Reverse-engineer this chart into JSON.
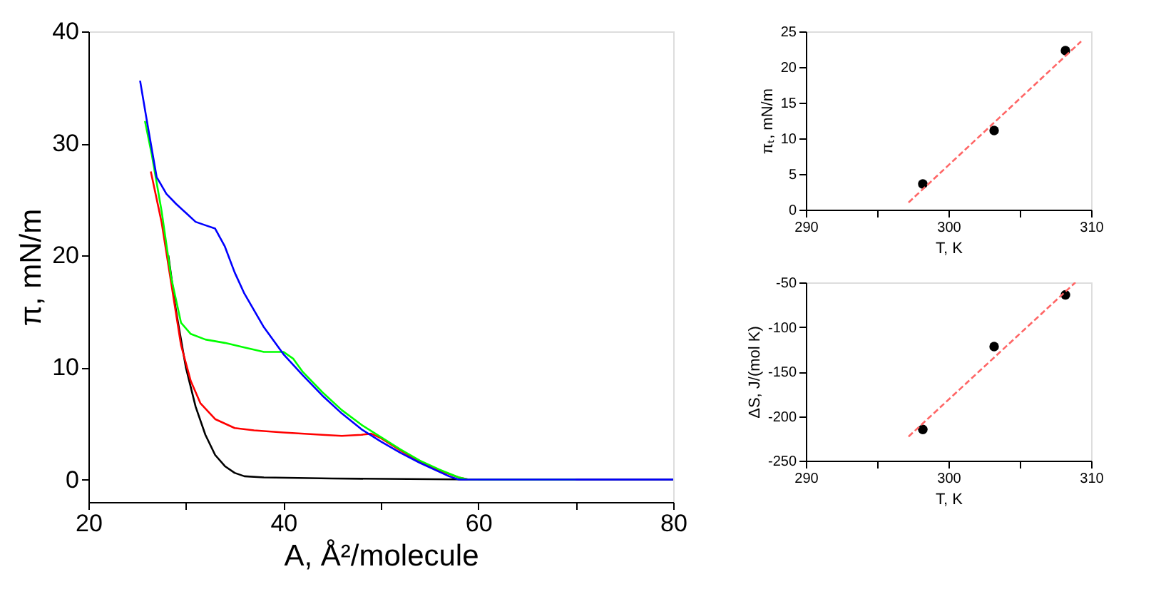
{
  "chart_data": [
    {
      "type": "line",
      "xlabel": "A, Å²/molecule",
      "ylabel": "π, mN/m",
      "xlim": [
        20,
        80
      ],
      "ylim": [
        -2,
        40
      ],
      "xticks": [
        20,
        {
          "value": 30,
          "label": null
        },
        40,
        {
          "value": 50,
          "label": null
        },
        60,
        {
          "value": 70,
          "label": null
        },
        80
      ],
      "yticks": [
        0,
        10,
        20,
        30,
        40
      ],
      "grid": false,
      "line_style": "solid",
      "marker": "none",
      "series": [
        {
          "color": "#000000",
          "x": [
            28.2,
            29,
            30,
            31,
            32,
            33,
            34,
            35,
            36,
            38,
            45,
            60,
            80
          ],
          "values": [
            20,
            15,
            10,
            6.5,
            4,
            2.2,
            1.2,
            0.6,
            0.3,
            0.2,
            0.1,
            0,
            0
          ]
        },
        {
          "color": "#ff0000",
          "x": [
            26.4,
            27.5,
            28.5,
            29.5,
            30.5,
            31.5,
            33,
            35,
            37,
            40,
            44,
            46,
            48,
            49,
            50,
            52,
            54,
            56,
            58,
            59,
            60
          ],
          "values": [
            27.5,
            23,
            17.5,
            12,
            8.8,
            6.8,
            5.4,
            4.6,
            4.4,
            4.2,
            4.0,
            3.9,
            4.0,
            4.1,
            3.7,
            2.6,
            1.6,
            0.8,
            0.2,
            0,
            0
          ]
        },
        {
          "color": "#00ff00",
          "x": [
            25.8,
            26.5,
            27.5,
            28.5,
            29.5,
            30.5,
            32,
            34,
            36,
            38,
            40,
            41,
            42,
            44,
            46,
            48,
            50,
            52,
            54,
            56,
            58,
            59,
            70
          ],
          "values": [
            32,
            29,
            24,
            18,
            14,
            13,
            12.5,
            12.2,
            11.8,
            11.4,
            11.4,
            10.8,
            9.6,
            7.8,
            6.2,
            4.9,
            3.8,
            2.7,
            1.7,
            0.9,
            0.2,
            0,
            0
          ]
        },
        {
          "color": "#0000ff",
          "x": [
            25.3,
            26,
            27,
            28,
            29,
            30,
            31,
            32,
            33,
            34,
            35,
            36,
            38,
            40,
            42,
            44,
            46,
            48,
            50,
            52,
            54,
            56,
            57,
            58,
            60,
            80
          ],
          "values": [
            35.6,
            32,
            27,
            25.5,
            24.6,
            23.8,
            23,
            22.7,
            22.4,
            20.8,
            18.5,
            16.6,
            13.6,
            11.2,
            9.3,
            7.5,
            5.9,
            4.5,
            3.4,
            2.4,
            1.5,
            0.7,
            0.3,
            0,
            0,
            0
          ]
        }
      ]
    },
    {
      "type": "scatter",
      "xlabel": "T, K",
      "ylabel": "πₜ, mN/m",
      "xlim": [
        290,
        310
      ],
      "ylim": [
        0,
        25
      ],
      "xticks": [
        290,
        {
          "value": 295,
          "label": null
        },
        300,
        {
          "value": 305,
          "label": null
        },
        310
      ],
      "yticks": [
        0,
        5,
        10,
        15,
        20,
        25
      ],
      "grid": false,
      "marker": "circle",
      "series": [
        {
          "color": "#000000",
          "x": [
            298.2,
            303.2,
            308.2
          ],
          "values": [
            3.6,
            11.1,
            22.3
          ]
        },
        {
          "type": "line",
          "line_style": "dashed",
          "marker": "none",
          "color": "#ff6666",
          "x": [
            297.2,
            309.3
          ],
          "values": [
            1,
            23.6
          ]
        }
      ]
    },
    {
      "type": "scatter",
      "xlabel": "T, K",
      "ylabel": "ΔS, J/(mol K)",
      "xlim": [
        290,
        310
      ],
      "ylim": [
        -250,
        -50
      ],
      "xticks": [
        290,
        {
          "value": 295,
          "label": null
        },
        300,
        {
          "value": 305,
          "label": null
        },
        310
      ],
      "yticks": [
        -250,
        -200,
        -150,
        -100,
        -50
      ],
      "grid": false,
      "marker": "circle",
      "series": [
        {
          "color": "#000000",
          "x": [
            298.2,
            303.2,
            308.2
          ],
          "values": [
            -215,
            -122,
            -64
          ]
        },
        {
          "type": "line",
          "line_style": "dashed",
          "marker": "none",
          "color": "#ff6666",
          "x": [
            297.2,
            308.9
          ],
          "values": [
            -223,
            -50
          ]
        }
      ]
    }
  ]
}
